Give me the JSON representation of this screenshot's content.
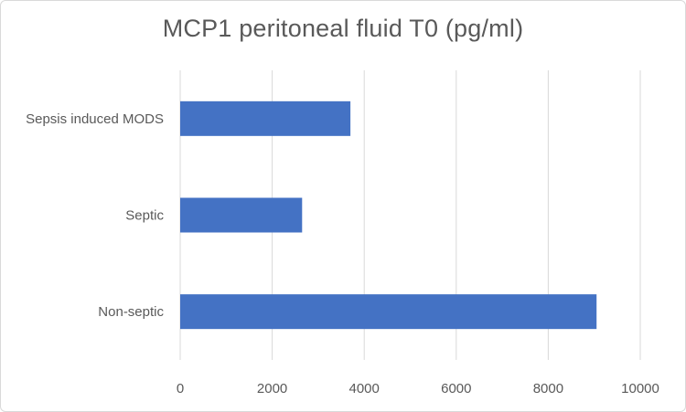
{
  "chart_data": {
    "type": "bar",
    "orientation": "horizontal",
    "title": "MCP1 peritoneal fluid T0 (pg/ml)",
    "xlabel": "",
    "ylabel": "",
    "categories": [
      "Sepsis induced MODS",
      "Septic",
      "Non-septic"
    ],
    "values": [
      3700,
      2650,
      9050
    ],
    "xlim": [
      0,
      10000
    ],
    "xticks": [
      "0",
      "2000",
      "4000",
      "6000",
      "8000",
      "10000"
    ],
    "grid": "vertical",
    "legend": "none",
    "bar_color": "#4472c4",
    "grid_color": "#d9d9d9"
  }
}
